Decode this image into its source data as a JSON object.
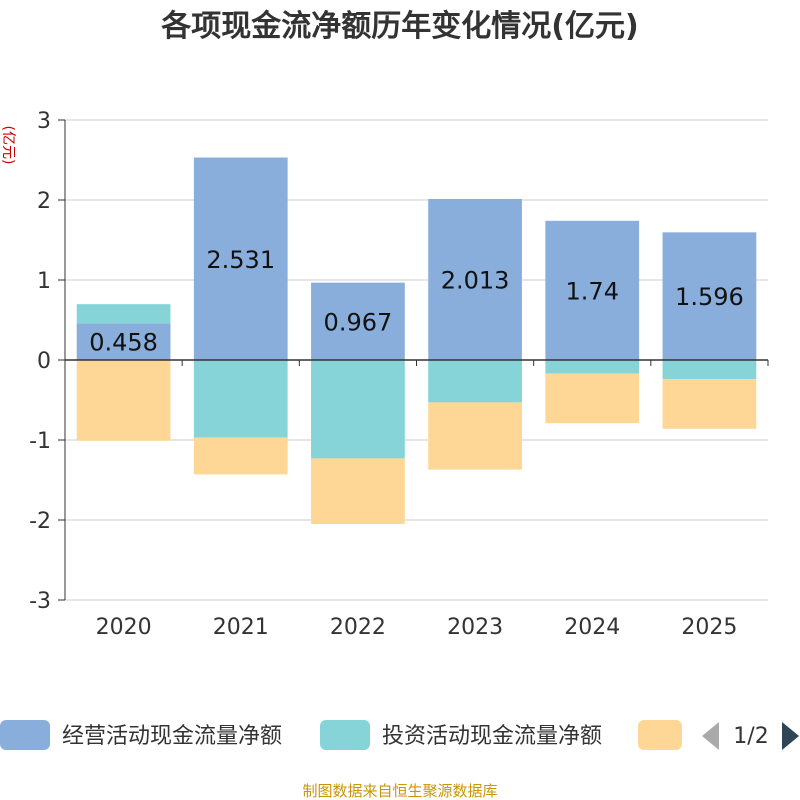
{
  "chart_data": {
    "type": "bar",
    "stacked": true,
    "title": "各项现金流净额历年变化情况(亿元)",
    "ylabel": "(亿元)",
    "ylim": [
      -3,
      3
    ],
    "yticks": [
      3,
      2,
      1,
      0,
      -1,
      -2,
      -3
    ],
    "categories": [
      "2020",
      "2021",
      "2022",
      "2023",
      "2024",
      "2025"
    ],
    "series": [
      {
        "name": "经营活动现金流量净额",
        "color": "#8aaedb",
        "values": [
          0.458,
          2.531,
          0.967,
          2.013,
          1.74,
          1.596
        ],
        "labels": [
          "0.458",
          "2.531",
          "0.967",
          "2.013",
          "1.74",
          "1.596"
        ]
      },
      {
        "name": "投资活动现金流量净额",
        "color": "#86d4d8",
        "values": [
          0.24,
          -0.97,
          -1.23,
          -0.53,
          -0.17,
          -0.24
        ]
      },
      {
        "name": "",
        "color": "#fed796",
        "values": [
          -1.01,
          -0.46,
          -0.82,
          -0.84,
          -0.62,
          -0.62
        ]
      }
    ],
    "legend": {
      "position": "bottom",
      "page": "1/2"
    },
    "grid": true
  },
  "footer": "制图数据来自恒生聚源数据库"
}
